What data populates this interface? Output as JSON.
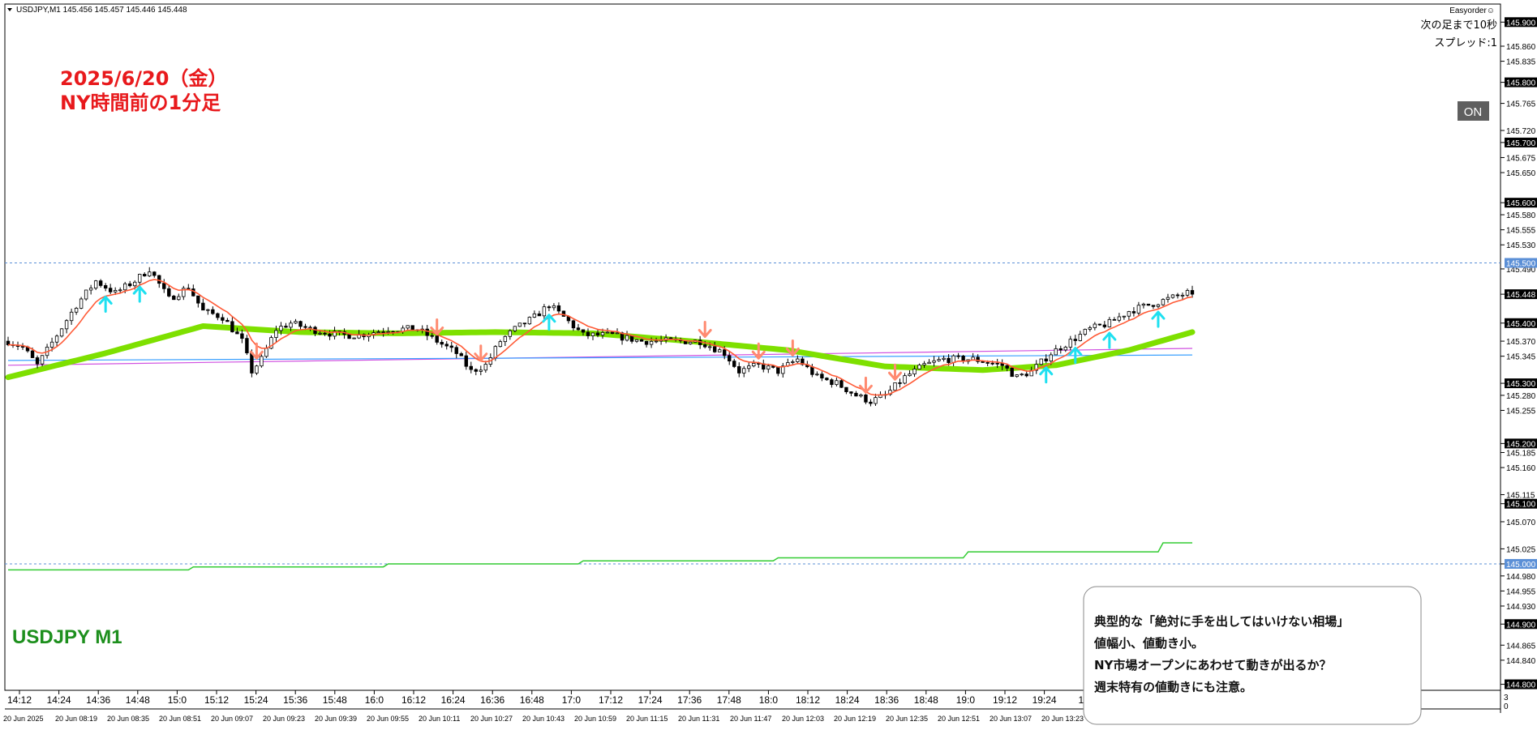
{
  "header": {
    "symbol_line": "USDJPY,M1  145.456 145.457 145.446 145.448",
    "ea_label": "Easyorder☺",
    "next_bar": "次の足まで10秒",
    "spread": "スプレッド:1",
    "on_button": "ON"
  },
  "annotation": {
    "line1": "2025/6/20（金）",
    "line2": "NY時間前の1分足"
  },
  "symbol_label": "USDJPY M1",
  "note": {
    "lines": [
      "典型的な「絶対に手を出してはいけない相場」",
      "値幅小、値動き小。",
      "NY市場オープンにあわせて動きが出るか？",
      "週末特有の値動きにも注意。"
    ]
  },
  "price_axis": {
    "ticks": [
      "145.900",
      "145.860",
      "145.835",
      "145.800",
      "145.765",
      "145.720",
      "145.700",
      "145.675",
      "145.650",
      "145.600",
      "145.580",
      "145.555",
      "145.530",
      "145.490",
      "145.448",
      "145.400",
      "145.370",
      "145.345",
      "145.300",
      "145.280",
      "145.255",
      "145.200",
      "145.185",
      "145.160",
      "145.115",
      "145.100",
      "145.070",
      "145.025",
      "145.000",
      "144.980",
      "144.955",
      "144.930",
      "144.900",
      "144.865",
      "144.840",
      "144.800"
    ],
    "highlighted": [
      "145.900",
      "145.800",
      "145.700",
      "145.600",
      "145.400",
      "145.300",
      "145.200",
      "145.100",
      "144.900",
      "144.800"
    ],
    "current_price_tag": "145.448",
    "blue_tags": [
      "145.500",
      "145.000"
    ],
    "sub_labels": [
      "3",
      "0"
    ]
  },
  "time_axis": {
    "labels": [
      "14:12",
      "14:24",
      "14:36",
      "14:48",
      "15:0",
      "15:12",
      "15:24",
      "15:36",
      "15:48",
      "16:0",
      "16:12",
      "16:24",
      "16:36",
      "16:48",
      "17:0",
      "17:12",
      "17:24",
      "17:36",
      "17:48",
      "18:0",
      "18:12",
      "18:24",
      "18:36",
      "18:48",
      "19:0",
      "19:12",
      "19:24",
      "19"
    ],
    "dates": [
      "20 Jun 2025",
      "20 Jun 08:19",
      "20 Jun 08:35",
      "20 Jun 08:51",
      "20 Jun 09:07",
      "20 Jun 09:23",
      "20 Jun 09:39",
      "20 Jun 09:55",
      "20 Jun 10:11",
      "20 Jun 10:27",
      "20 Jun 10:43",
      "20 Jun 10:59",
      "20 Jun 11:15",
      "20 Jun 11:31",
      "20 Jun 11:47",
      "20 Jun 12:03",
      "20 Jun 12:19",
      "20 Jun 12:35",
      "20 Jun 12:51",
      "20 Jun 13:07",
      "20 Jun 13:23"
    ]
  },
  "colors": {
    "ma_slow": "#7ee000",
    "ma_fast": "#ff5a36",
    "up_arrow": "#1ee0f0",
    "down_arrow": "#ff8a70",
    "level_line": "#5b8fd6",
    "step_line": "#33cc33",
    "pink_line": "#d050e0",
    "blue_line": "#3aa0ff"
  },
  "chart_data": {
    "type": "candlestick",
    "symbol": "USDJPY",
    "timeframe": "M1",
    "ylim": [
      144.79,
      145.93
    ],
    "dashed_levels": [
      145.5,
      145.0
    ],
    "anchors": [
      [
        0,
        145.37
      ],
      [
        3,
        145.36
      ],
      [
        6,
        145.33
      ],
      [
        10,
        145.38
      ],
      [
        14,
        145.43
      ],
      [
        18,
        145.47
      ],
      [
        22,
        145.45
      ],
      [
        26,
        145.47
      ],
      [
        29,
        145.49
      ],
      [
        33,
        145.44
      ],
      [
        37,
        145.46
      ],
      [
        40,
        145.42
      ],
      [
        44,
        145.41
      ],
      [
        48,
        145.37
      ],
      [
        50,
        145.32
      ],
      [
        52,
        145.34
      ],
      [
        55,
        145.39
      ],
      [
        58,
        145.4
      ],
      [
        62,
        145.39
      ],
      [
        68,
        145.38
      ],
      [
        72,
        145.38
      ],
      [
        78,
        145.39
      ],
      [
        84,
        145.39
      ],
      [
        88,
        145.37
      ],
      [
        92,
        145.35
      ],
      [
        95,
        145.32
      ],
      [
        98,
        145.33
      ],
      [
        101,
        145.37
      ],
      [
        104,
        145.39
      ],
      [
        108,
        145.41
      ],
      [
        111,
        145.43
      ],
      [
        114,
        145.41
      ],
      [
        118,
        145.38
      ],
      [
        124,
        145.38
      ],
      [
        130,
        145.37
      ],
      [
        136,
        145.37
      ],
      [
        142,
        145.37
      ],
      [
        147,
        145.35
      ],
      [
        150,
        145.32
      ],
      [
        154,
        145.33
      ],
      [
        158,
        145.32
      ],
      [
        162,
        145.34
      ],
      [
        166,
        145.31
      ],
      [
        170,
        145.3
      ],
      [
        174,
        145.28
      ],
      [
        177,
        145.27
      ],
      [
        180,
        145.28
      ],
      [
        184,
        145.31
      ],
      [
        188,
        145.33
      ],
      [
        192,
        145.34
      ],
      [
        198,
        145.34
      ],
      [
        204,
        145.33
      ],
      [
        207,
        145.31
      ],
      [
        210,
        145.32
      ],
      [
        214,
        145.35
      ],
      [
        218,
        145.37
      ],
      [
        222,
        145.39
      ],
      [
        226,
        145.4
      ],
      [
        230,
        145.42
      ],
      [
        234,
        145.43
      ],
      [
        238,
        145.44
      ],
      [
        242,
        145.45
      ],
      [
        243,
        145.448
      ]
    ],
    "ma_slow": [
      [
        0,
        145.31
      ],
      [
        20,
        145.35
      ],
      [
        40,
        145.395
      ],
      [
        50,
        145.39
      ],
      [
        60,
        145.385
      ],
      [
        80,
        145.383
      ],
      [
        100,
        145.385
      ],
      [
        120,
        145.383
      ],
      [
        140,
        145.37
      ],
      [
        160,
        145.355
      ],
      [
        180,
        145.328
      ],
      [
        200,
        145.322
      ],
      [
        215,
        145.33
      ],
      [
        230,
        145.355
      ],
      [
        243,
        145.385
      ]
    ],
    "pink_line": [
      [
        0,
        145.33
      ],
      [
        243,
        145.358
      ]
    ],
    "blue_line": [
      [
        0,
        145.338
      ],
      [
        243,
        145.347
      ]
    ],
    "step_line": [
      [
        0,
        144.99
      ],
      [
        37,
        144.99
      ],
      [
        38,
        144.995
      ],
      [
        77,
        144.995
      ],
      [
        78,
        145.0
      ],
      [
        117,
        145.0
      ],
      [
        118,
        145.005
      ],
      [
        157,
        145.005
      ],
      [
        158,
        145.01
      ],
      [
        196,
        145.01
      ],
      [
        197,
        145.02
      ],
      [
        236,
        145.02
      ],
      [
        237,
        145.035
      ],
      [
        243,
        145.035
      ]
    ],
    "up_arrows": [
      20,
      27,
      111,
      213,
      219,
      226,
      236
    ],
    "down_arrows": [
      51,
      88,
      97,
      143,
      154,
      161,
      176,
      182
    ]
  }
}
